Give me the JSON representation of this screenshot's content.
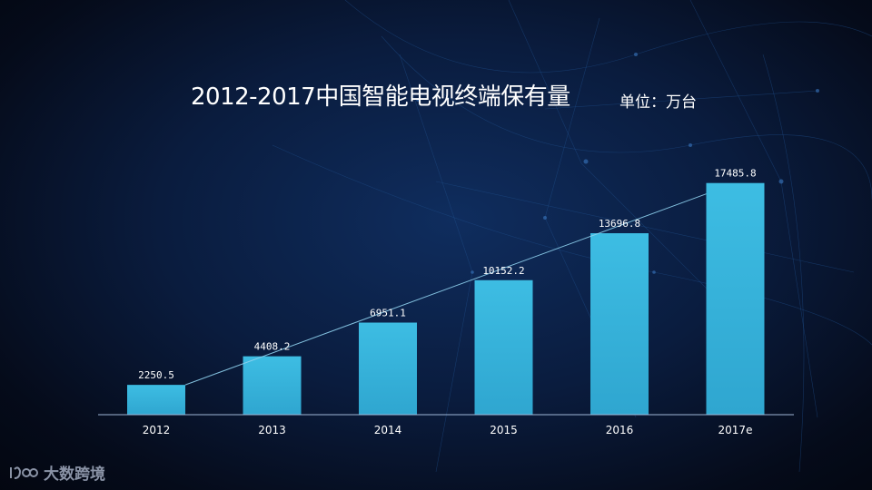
{
  "title": "2012-2017中国智能电视终端保有量",
  "unit": "单位：万台",
  "brand": "大数跨境",
  "colors": {
    "bar": "#3bb6dc",
    "trend": "#8fd2ee",
    "axis": "#9fb6d6"
  },
  "chart_data": {
    "type": "bar",
    "title": "2012-2017中国智能电视终端保有量",
    "unit": "单位：万台",
    "categories": [
      "2012",
      "2013",
      "2014",
      "2015",
      "2016",
      "2017e"
    ],
    "values": [
      2250.5,
      4408.2,
      6951.1,
      10152.2,
      13696.8,
      17485.8
    ],
    "value_labels": [
      "2250.5",
      "4408.2",
      "6951.1",
      "10152.2",
      "13696.8",
      "17485.8"
    ],
    "trend_line": true,
    "ylim": [
      0,
      20000
    ],
    "grid": false,
    "legend": "none"
  }
}
